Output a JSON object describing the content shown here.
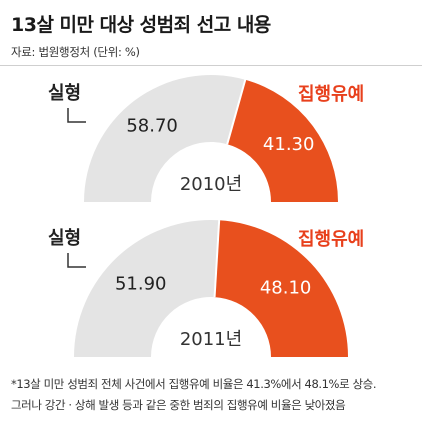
{
  "title": "13살 미만 대상 성범죄 선고 내용",
  "source": "자료: 법원행정처  (단위: %)",
  "colors": {
    "suspended": "#e8501e",
    "prison": "#e4e4e4",
    "label_red": "#e8401c"
  },
  "chart_data": [
    {
      "type": "pie",
      "center_label": "2010년",
      "categories": [
        "실형",
        "집행유예"
      ],
      "values": [
        58.7,
        41.3
      ],
      "value_labels": [
        "58.70",
        "41.30"
      ]
    },
    {
      "type": "pie",
      "center_label": "2011년",
      "categories": [
        "실형",
        "집행유예"
      ],
      "values": [
        51.9,
        48.1
      ],
      "value_labels": [
        "51.90",
        "48.10"
      ]
    }
  ],
  "footnote": [
    "*13살 미만 성범죄 전체 사건에서 집행유예 비율은 41.3%에서 48.1%로 상승.",
    " 그러나 강간 · 상해 발생 등과 같은 중한 범죄의 집행유예 비율은 낮아졌음"
  ]
}
